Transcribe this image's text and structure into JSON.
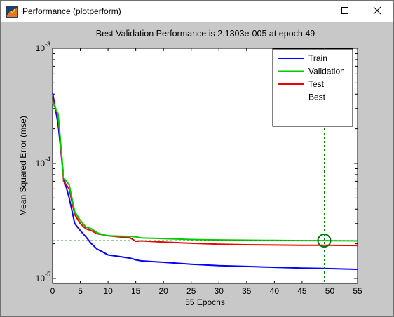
{
  "window": {
    "title": "Performance (plotperform)",
    "icons": [
      "matlab-figure-icon",
      "minimize-icon",
      "maximize-icon",
      "close-icon"
    ]
  },
  "chart_data": {
    "type": "line",
    "title": "Best Validation Performance is 2.1303e-005 at epoch 49",
    "xlabel": "55 Epochs",
    "ylabel": "Mean Squared Error  (mse)",
    "xlim": [
      0,
      55
    ],
    "ylim": [
      9.06e-06,
      0.001
    ],
    "yscale": "log",
    "grid": false,
    "legend_position": "top-right",
    "x_ticks": [
      "0",
      "5",
      "10",
      "15",
      "20",
      "25",
      "30",
      "35",
      "40",
      "45",
      "50",
      "55"
    ],
    "y_tick_bases": [
      "10",
      "10",
      "10"
    ],
    "y_tick_exponents": [
      "-5",
      "-4",
      "-3"
    ],
    "y_tick_values": [
      1e-05,
      0.0001,
      0.001
    ],
    "series": [
      {
        "name": "Train",
        "color": "#0000ff",
        "x": [
          0,
          1,
          2,
          3,
          4,
          5,
          6,
          7,
          8,
          9,
          10,
          12,
          14,
          15,
          16,
          20,
          25,
          30,
          35,
          40,
          45,
          49,
          55
        ],
        "y": [
          0.00041,
          0.00022,
          7.5e-05,
          5e-05,
          3e-05,
          2.6e-05,
          2.3e-05,
          2e-05,
          1.8e-05,
          1.7e-05,
          1.6e-05,
          1.55e-05,
          1.5e-05,
          1.45e-05,
          1.42e-05,
          1.38e-05,
          1.33e-05,
          1.29e-05,
          1.27e-05,
          1.25e-05,
          1.23e-05,
          1.22e-05,
          1.2e-05
        ]
      },
      {
        "name": "Validation",
        "color": "#00cc00",
        "x": [
          0,
          1,
          2,
          3,
          4,
          5,
          6,
          7,
          8,
          9,
          10,
          12,
          14,
          15,
          16,
          20,
          25,
          30,
          35,
          40,
          45,
          49,
          55
        ],
        "y": [
          0.00034,
          0.00027,
          7.5e-05,
          6.5e-05,
          3.8e-05,
          3.2e-05,
          2.8e-05,
          2.7e-05,
          2.5e-05,
          2.4e-05,
          2.35e-05,
          2.33e-05,
          2.32e-05,
          2.3e-05,
          2.25e-05,
          2.22e-05,
          2.18e-05,
          2.16e-05,
          2.15e-05,
          2.14e-05,
          2.13e-05,
          2.13e-05,
          2.12e-05
        ]
      },
      {
        "name": "Test",
        "color": "#ee0000",
        "x": [
          0,
          1,
          2,
          3,
          4,
          5,
          6,
          7,
          8,
          9,
          10,
          12,
          14,
          15,
          16,
          20,
          25,
          30,
          35,
          40,
          45,
          49,
          55
        ],
        "y": [
          0.00036,
          0.00026,
          7e-05,
          6e-05,
          3.6e-05,
          3e-05,
          2.7e-05,
          2.6e-05,
          2.45e-05,
          2.4e-05,
          2.35e-05,
          2.3e-05,
          2.25e-05,
          2.1e-05,
          2.12e-05,
          2.07e-05,
          2.02e-05,
          1.98e-05,
          1.96e-05,
          1.95e-05,
          1.94e-05,
          1.94e-05,
          1.93e-05
        ]
      }
    ],
    "best": {
      "name": "Best",
      "color": "#007700",
      "epoch": 49,
      "value": 2.1303e-05
    }
  }
}
